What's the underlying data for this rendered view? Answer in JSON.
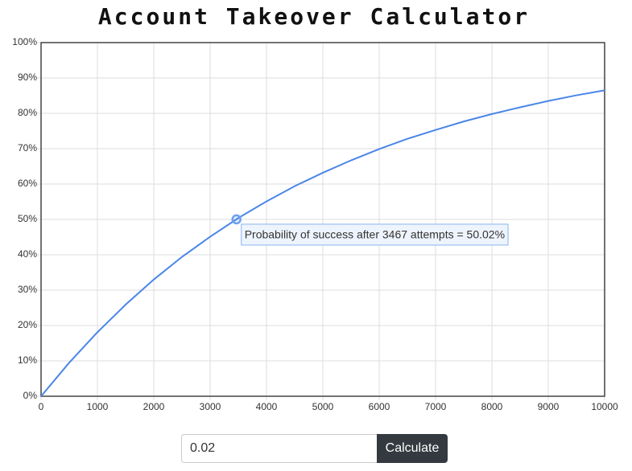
{
  "chart_data": {
    "type": "line",
    "title": "Account Takeover Calculator",
    "x": [
      0,
      500,
      1000,
      1500,
      2000,
      2500,
      3000,
      3500,
      4000,
      4500,
      5000,
      5500,
      6000,
      6500,
      7000,
      7500,
      8000,
      8500,
      9000,
      9500,
      10000
    ],
    "series": [
      {
        "color": "#4a86e8",
        "values": [
          0,
          9.5,
          18.1,
          25.9,
          33.0,
          39.4,
          45.1,
          50.4,
          55.1,
          59.4,
          63.2,
          66.7,
          69.9,
          72.8,
          75.3,
          77.7,
          79.8,
          81.7,
          83.5,
          85.1,
          86.5
        ]
      }
    ],
    "xlim": [
      0,
      10000
    ],
    "xticks": [
      0,
      1000,
      2000,
      3000,
      4000,
      5000,
      6000,
      7000,
      8000,
      9000,
      10000
    ],
    "ylim": [
      0,
      100
    ],
    "yticks": [
      {
        "value": 0,
        "label": "0%"
      },
      {
        "value": 10,
        "label": "10%"
      },
      {
        "value": 20,
        "label": "20%"
      },
      {
        "value": 30,
        "label": "30%"
      },
      {
        "value": 40,
        "label": "40%"
      },
      {
        "value": 50,
        "label": "50%"
      },
      {
        "value": 60,
        "label": "60%"
      },
      {
        "value": 70,
        "label": "70%"
      },
      {
        "value": 80,
        "label": "80%"
      },
      {
        "value": 90,
        "label": "90%"
      },
      {
        "value": 100,
        "label": "100%"
      }
    ],
    "grid": true,
    "annotation": {
      "x": 3467,
      "y": 50.02,
      "label": "Probability of success after 3467 attempts = 50.02%"
    }
  },
  "form": {
    "input": "0.02",
    "button": "Calculate"
  }
}
